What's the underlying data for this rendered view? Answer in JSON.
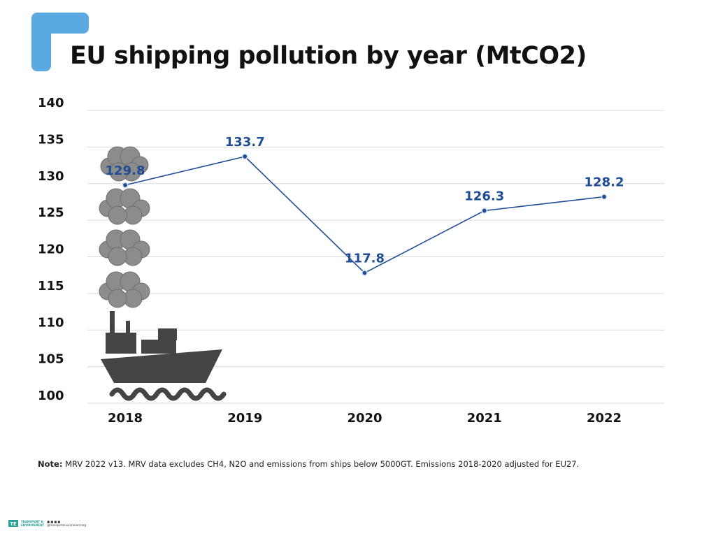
{
  "title": "EU shipping pollution by year (MtCO2)",
  "brand_color": "#5aa9e0",
  "chart_data": {
    "type": "line",
    "title": "EU shipping pollution by year (MtCO2)",
    "categories": [
      "2018",
      "2019",
      "2020",
      "2021",
      "2022"
    ],
    "values": [
      129.8,
      133.7,
      117.8,
      126.3,
      128.2
    ],
    "value_labels": [
      "129.8",
      "133.7",
      "117.8",
      "126.3",
      "128.2"
    ],
    "ylim": [
      100,
      140
    ],
    "yticks": [
      100,
      105,
      110,
      115,
      120,
      125,
      130,
      135,
      140
    ],
    "xlabel": "",
    "ylabel": "",
    "grid": true,
    "legend": "none",
    "line_color": "#1f4e96",
    "label_color": "#1f4e96",
    "illustration": "ship-with-smoke-clouds"
  },
  "note": {
    "label": "Note:",
    "text": " MRV 2022 v13. MRV data excludes CH4, N2O and emissions from ships below 5000GT. Emissions 2018-2020 adjusted for EU27."
  },
  "footer": {
    "logo_line1": "TRANSPORT &",
    "logo_line2": "ENVIRONMENT",
    "handle": "@transportenvironment.org"
  }
}
